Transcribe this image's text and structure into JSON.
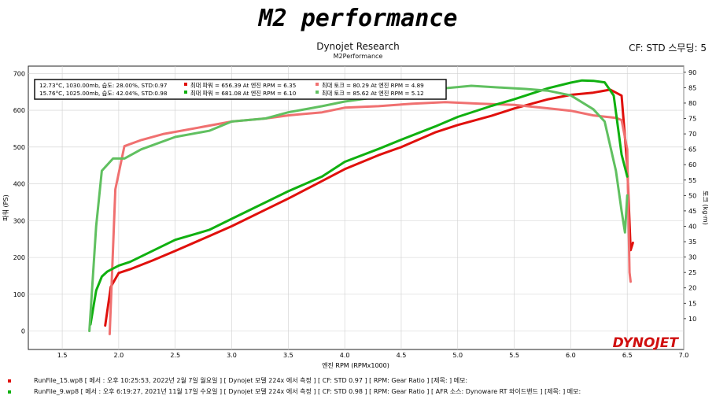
{
  "header": {
    "banner_title": "M2 performance",
    "company": "Dynojet Research",
    "subtitle": "M2Performance",
    "cf_std": "CF: STD 스무딩: 5"
  },
  "legend_box": {
    "row1": "12.73°C,  1030.00mb,  습도:  28.00%, STD:0.97",
    "row2": "15.76°C,  1025.00mb,  습도:  42.04%, STD:0.98",
    "entries": [
      {
        "text": "최대 파워 = 656.39 At 엔진 RPM = 6.35",
        "color": "#e0100c"
      },
      {
        "text": "최대 토크 = 80.29 At 엔진 RPM = 4.89",
        "color": "#f07070"
      },
      {
        "text": "최대 파워 = 681.08 At 엔진 RPM = 6.10",
        "color": "#10b010"
      },
      {
        "text": "최대 토크 = 85.62 At 엔진 RPM = 5.12",
        "color": "#60c060"
      }
    ]
  },
  "logo_text": "DYNOJET",
  "footer": [
    {
      "text": "RunFile_15.wp8  [ 메서 : 오후 10:25:53,  2022년 2월 7일 월요일 ] [ Dynojet 모델 224x 에서 측정 ] [ CF: STD 0.97 ] [ RPM: Gear Ratio ] [제목: ] 메모:",
      "color": "#e0100c"
    },
    {
      "text": "RunFile_9.wp8  [ 메서 : 오후 6:19:27,  2021년 11월 17일 수요일 ] [ Dynojet 모델 224x 에서 측정 ] [ CF: STD 0.98 ] [ RPM: Gear Ratio ] [ AFR 소스: Dynoware  RT 와이드밴드 ] [제목: ] 메모:",
      "color": "#10b010"
    }
  ],
  "chart_data": {
    "type": "line",
    "xlabel": "엔진 RPM (RPMx1000)",
    "ylabel_left": "파워 (PS)",
    "ylabel_right": "토크 (kg·m)",
    "xlim": [
      1.2,
      7.0
    ],
    "ylim_left": [
      -50,
      720
    ],
    "ylim_right": [
      0,
      92
    ],
    "x_ticks": [
      "1.5",
      "2.0",
      "2.5",
      "3.0",
      "3.5",
      "4.0",
      "4.5",
      "5.0",
      "5.5",
      "6.0",
      "6.5",
      "7.0"
    ],
    "y_ticks_left": [
      "0",
      "100",
      "200",
      "300",
      "400",
      "500",
      "600",
      "700"
    ],
    "y_ticks_right": [
      "10",
      "15",
      "20",
      "25",
      "30",
      "35",
      "40",
      "45",
      "50",
      "55",
      "60",
      "65",
      "70",
      "75",
      "80",
      "85",
      "90"
    ],
    "grid": true,
    "series": [
      {
        "name": "RunFile_15 파워",
        "axis": "left",
        "color": "#e0100c",
        "x": [
          1.88,
          1.93,
          2.0,
          2.1,
          2.3,
          2.5,
          2.8,
          3.0,
          3.3,
          3.5,
          3.8,
          4.0,
          4.3,
          4.5,
          4.8,
          5.0,
          5.3,
          5.5,
          5.8,
          6.0,
          6.2,
          6.35,
          6.45,
          6.5,
          6.53,
          6.55
        ],
        "y": [
          15,
          120,
          158,
          168,
          192,
          218,
          258,
          285,
          330,
          360,
          408,
          440,
          478,
          500,
          540,
          560,
          585,
          605,
          630,
          642,
          648,
          656,
          640,
          450,
          220,
          240
        ]
      },
      {
        "name": "RunFile_15 토크",
        "axis": "right",
        "color": "#f07070",
        "x": [
          1.92,
          1.97,
          2.05,
          2.2,
          2.4,
          2.7,
          3.0,
          3.3,
          3.5,
          3.8,
          4.0,
          4.3,
          4.6,
          4.89,
          5.2,
          5.5,
          5.8,
          6.0,
          6.2,
          6.4,
          6.45,
          6.5,
          6.52,
          6.53
        ],
        "y": [
          5,
          52,
          66,
          68,
          70,
          72,
          74,
          75,
          76,
          77,
          78.5,
          79,
          79.8,
          80.29,
          79.8,
          79.4,
          78.3,
          77.5,
          76,
          75.2,
          74.5,
          65,
          25,
          22
        ]
      },
      {
        "name": "RunFile_9 파워",
        "axis": "left",
        "color": "#10b010",
        "x": [
          1.75,
          1.8,
          1.85,
          1.9,
          2.0,
          2.1,
          2.3,
          2.5,
          2.8,
          3.0,
          3.3,
          3.5,
          3.8,
          4.0,
          4.3,
          4.5,
          4.8,
          5.0,
          5.3,
          5.5,
          5.8,
          6.0,
          6.1,
          6.2,
          6.3,
          6.38,
          6.45,
          6.5
        ],
        "y": [
          18,
          110,
          148,
          162,
          178,
          188,
          218,
          248,
          275,
          305,
          350,
          380,
          420,
          460,
          495,
          520,
          556,
          582,
          612,
          630,
          660,
          675,
          681,
          680,
          676,
          640,
          480,
          420
        ]
      },
      {
        "name": "RunFile_9 토크",
        "axis": "right",
        "color": "#60c060",
        "x": [
          1.74,
          1.8,
          1.85,
          1.95,
          2.05,
          2.2,
          2.5,
          2.8,
          3.0,
          3.3,
          3.5,
          3.8,
          4.0,
          4.3,
          4.6,
          4.8,
          5.0,
          5.12,
          5.4,
          5.6,
          5.8,
          6.0,
          6.2,
          6.3,
          6.4,
          6.45,
          6.48,
          6.5
        ],
        "y": [
          6,
          40,
          58,
          62,
          62,
          65,
          69,
          71,
          74,
          75,
          77,
          79,
          80.5,
          82,
          83.5,
          84.5,
          85.2,
          85.62,
          85,
          84.6,
          84,
          82.5,
          78,
          74,
          58,
          45,
          38,
          50
        ]
      }
    ]
  }
}
